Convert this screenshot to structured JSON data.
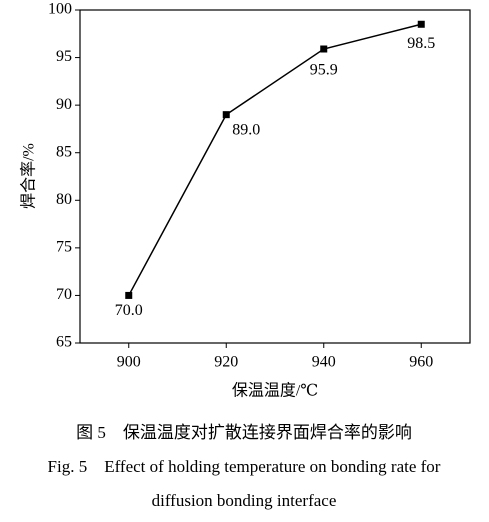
{
  "chart_data": {
    "type": "line",
    "x": [
      900,
      920,
      940,
      960
    ],
    "series": [
      {
        "name": "焊合率",
        "color": "#000000",
        "values": [
          70,
          89,
          95.9,
          98.5
        ],
        "value_labels": [
          "70.0",
          "89.0",
          "95.9",
          "98.5"
        ]
      }
    ],
    "xlim": [
      890,
      970
    ],
    "xticks": [
      900,
      920,
      940,
      960
    ],
    "ylim": [
      65,
      100
    ],
    "yticks": [
      65,
      70,
      75,
      80,
      85,
      90,
      95,
      100
    ],
    "x_label": "保温温度/℃",
    "y_label": "焊合率/%",
    "caption_cn": "图 5　保温温度对扩散连接界面焊合率的影响",
    "caption_en": [
      "Fig. 5　Effect of holding temperature on bonding rate for",
      "diffusion bonding interface"
    ]
  }
}
